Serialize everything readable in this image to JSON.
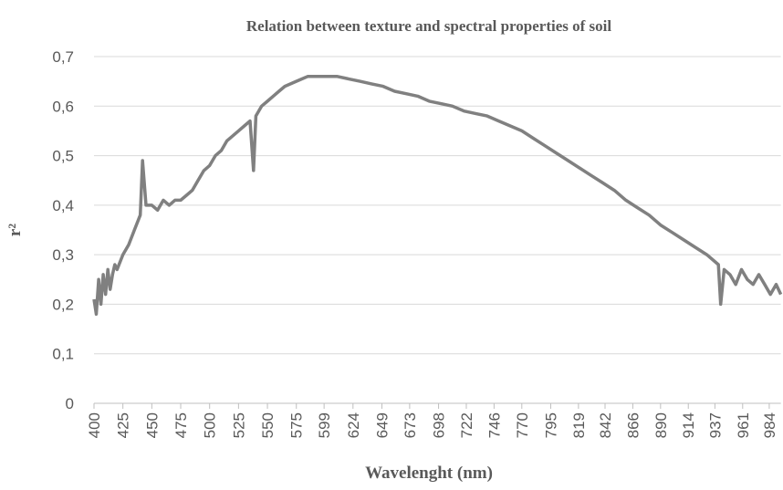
{
  "chart_data": {
    "type": "line",
    "title": "Relation between texture and spectral properties of soil",
    "x_label": "Wavelenght (nm)",
    "y_label": "r²",
    "x": [
      400,
      402,
      404,
      406,
      408,
      410,
      412,
      414,
      416,
      418,
      420,
      425,
      430,
      435,
      440,
      442,
      445,
      450,
      455,
      460,
      465,
      470,
      475,
      480,
      485,
      490,
      495,
      500,
      505,
      510,
      515,
      520,
      525,
      530,
      535,
      538,
      540,
      545,
      550,
      555,
      560,
      565,
      570,
      575,
      580,
      585,
      590,
      600,
      610,
      620,
      630,
      640,
      650,
      660,
      670,
      680,
      690,
      700,
      710,
      720,
      730,
      740,
      750,
      760,
      770,
      780,
      790,
      800,
      810,
      820,
      830,
      840,
      850,
      860,
      870,
      880,
      890,
      900,
      910,
      920,
      930,
      940,
      942,
      945,
      950,
      955,
      960,
      965,
      970,
      975,
      980,
      985,
      990,
      994
    ],
    "series": [
      {
        "name": "r²",
        "color": "#808080",
        "values": [
          0.21,
          0.18,
          0.25,
          0.2,
          0.26,
          0.22,
          0.27,
          0.23,
          0.26,
          0.28,
          0.27,
          0.3,
          0.32,
          0.35,
          0.38,
          0.49,
          0.4,
          0.4,
          0.39,
          0.41,
          0.4,
          0.41,
          0.41,
          0.42,
          0.43,
          0.45,
          0.47,
          0.48,
          0.5,
          0.51,
          0.53,
          0.54,
          0.55,
          0.56,
          0.57,
          0.47,
          0.58,
          0.6,
          0.61,
          0.62,
          0.63,
          0.64,
          0.645,
          0.65,
          0.655,
          0.66,
          0.66,
          0.66,
          0.66,
          0.655,
          0.65,
          0.645,
          0.64,
          0.63,
          0.625,
          0.62,
          0.61,
          0.605,
          0.6,
          0.59,
          0.585,
          0.58,
          0.57,
          0.56,
          0.55,
          0.535,
          0.52,
          0.505,
          0.49,
          0.475,
          0.46,
          0.445,
          0.43,
          0.41,
          0.395,
          0.38,
          0.36,
          0.345,
          0.33,
          0.315,
          0.3,
          0.28,
          0.2,
          0.27,
          0.26,
          0.24,
          0.27,
          0.25,
          0.24,
          0.26,
          0.24,
          0.22,
          0.24,
          0.22
        ]
      }
    ],
    "xlim": [
      400,
      994
    ],
    "ylim": [
      0,
      0.7
    ],
    "xticks": [
      400,
      425,
      450,
      475,
      500,
      525,
      550,
      575,
      599,
      624,
      649,
      673,
      698,
      722,
      746,
      770,
      795,
      819,
      842,
      866,
      890,
      914,
      937,
      961,
      984
    ],
    "yticks": [
      0,
      {
        "value": 0.1,
        "label": "0,1"
      },
      {
        "value": 0.2,
        "label": "0,2"
      },
      {
        "value": 0.3,
        "label": "0,3"
      },
      {
        "value": 0.4,
        "label": "0,4"
      },
      {
        "value": 0.5,
        "label": "0,5"
      },
      {
        "value": 0.6,
        "label": "0,6"
      },
      {
        "value": 0.7,
        "label": "0,7"
      }
    ],
    "grid": true
  }
}
